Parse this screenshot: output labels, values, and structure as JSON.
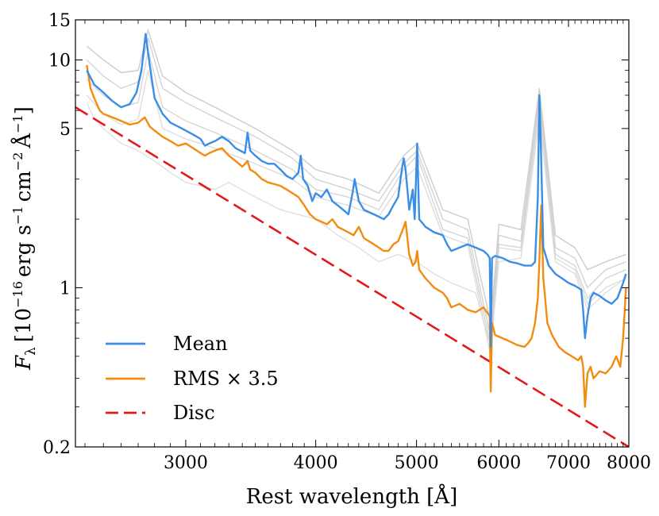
{
  "chart_data": {
    "type": "line",
    "title": "",
    "xlabel": "Rest wavelength [Å]",
    "ylabel_parts": [
      "F",
      "λ",
      "[10",
      "−16",
      "erg s",
      "−1",
      "cm",
      "−2",
      "Å",
      "−1",
      "]"
    ],
    "xscale": "log",
    "yscale": "log",
    "xlim": [
      2350,
      8000
    ],
    "ylim": [
      0.2,
      15
    ],
    "x_ticks": [
      {
        "value": 3000,
        "label": "3000"
      },
      {
        "value": 4000,
        "label": "4000"
      },
      {
        "value": 5000,
        "label": "5000"
      },
      {
        "value": 6000,
        "label": "6000"
      },
      {
        "value": 7000,
        "label": "7000"
      },
      {
        "value": 8000,
        "label": "8000"
      }
    ],
    "y_ticks": [
      {
        "value": 0.2,
        "label": "0.2"
      },
      {
        "value": 1,
        "label": "1"
      },
      {
        "value": 5,
        "label": "5"
      },
      {
        "value": 10,
        "label": "10"
      },
      {
        "value": 15,
        "label": "15"
      }
    ],
    "legend": {
      "position": "lower-left",
      "entries": [
        {
          "label": "Mean",
          "color": "#3a8ee6",
          "style": "solid"
        },
        {
          "label": "RMS × 3.5",
          "color": "#f28c0f",
          "style": "solid"
        },
        {
          "label": "Disc",
          "color": "#e31a1c",
          "style": "dashed"
        }
      ]
    },
    "series": [
      {
        "name": "Disc",
        "color": "#e31a1c",
        "style": "dashed",
        "x": [
          2350,
          8000
        ],
        "y": [
          6.2,
          0.2
        ]
      },
      {
        "name": "Mean",
        "color": "#3a8ee6",
        "style": "solid",
        "x": [
          2410,
          2450,
          2500,
          2550,
          2600,
          2650,
          2690,
          2720,
          2745,
          2770,
          2800,
          2850,
          2900,
          2950,
          3000,
          3050,
          3100,
          3130,
          3160,
          3200,
          3250,
          3300,
          3350,
          3420,
          3440,
          3460,
          3500,
          3550,
          3600,
          3650,
          3700,
          3750,
          3800,
          3850,
          3870,
          3890,
          3930,
          3970,
          4000,
          4050,
          4100,
          4150,
          4200,
          4250,
          4300,
          4340,
          4360,
          4400,
          4450,
          4500,
          4550,
          4600,
          4650,
          4700,
          4750,
          4800,
          4840,
          4861,
          4880,
          4920,
          4959,
          4980,
          5007,
          5030,
          5100,
          5200,
          5300,
          5350,
          5400,
          5500,
          5600,
          5700,
          5800,
          5850,
          5880,
          5893,
          5910,
          5950,
          6050,
          6150,
          6250,
          6350,
          6450,
          6500,
          6540,
          6563,
          6580,
          6620,
          6700,
          6800,
          6900,
          7000,
          7100,
          7150,
          7200,
          7230,
          7260,
          7300,
          7350,
          7400,
          7500,
          7600,
          7700,
          7800,
          7900,
          7950
        ],
        "y": [
          9.0,
          7.8,
          7.2,
          6.6,
          6.2,
          6.4,
          7.2,
          9.0,
          13.0,
          9.5,
          6.8,
          5.8,
          5.3,
          5.1,
          4.9,
          4.7,
          4.5,
          4.2,
          4.3,
          4.4,
          4.6,
          4.4,
          4.1,
          3.9,
          4.8,
          4.0,
          3.8,
          3.6,
          3.5,
          3.5,
          3.3,
          3.1,
          3.0,
          3.2,
          3.8,
          3.0,
          2.8,
          2.4,
          2.6,
          2.5,
          2.7,
          2.4,
          2.3,
          2.2,
          2.1,
          2.6,
          3.0,
          2.4,
          2.2,
          2.15,
          2.1,
          2.05,
          2.0,
          2.1,
          2.3,
          2.5,
          3.3,
          3.7,
          3.3,
          2.2,
          2.7,
          2.0,
          4.3,
          2.0,
          1.85,
          1.75,
          1.7,
          1.55,
          1.45,
          1.5,
          1.55,
          1.5,
          1.45,
          1.4,
          1.35,
          0.55,
          1.35,
          1.38,
          1.35,
          1.3,
          1.28,
          1.25,
          1.25,
          1.3,
          2.5,
          7.0,
          4.8,
          1.5,
          1.25,
          1.15,
          1.1,
          1.05,
          1.02,
          1.0,
          0.98,
          0.8,
          0.6,
          0.75,
          0.9,
          0.95,
          0.92,
          0.88,
          0.85,
          0.9,
          1.05,
          1.15
        ]
      },
      {
        "name": "RMS × 3.5",
        "color": "#f28c0f",
        "style": "solid",
        "x": [
          2410,
          2430,
          2450,
          2480,
          2500,
          2550,
          2600,
          2650,
          2700,
          2740,
          2770,
          2800,
          2850,
          2900,
          2950,
          3000,
          3050,
          3100,
          3130,
          3160,
          3200,
          3250,
          3300,
          3350,
          3400,
          3440,
          3460,
          3500,
          3550,
          3600,
          3650,
          3700,
          3750,
          3800,
          3850,
          3900,
          3950,
          4000,
          4050,
          4100,
          4150,
          4200,
          4250,
          4300,
          4350,
          4400,
          4450,
          4500,
          4550,
          4600,
          4650,
          4700,
          4750,
          4800,
          4850,
          4880,
          4920,
          4960,
          4990,
          5007,
          5030,
          5100,
          5200,
          5300,
          5350,
          5400,
          5500,
          5600,
          5700,
          5800,
          5880,
          5893,
          5910,
          5950,
          6050,
          6150,
          6250,
          6350,
          6400,
          6450,
          6500,
          6540,
          6563,
          6590,
          6620,
          6680,
          6750,
          6850,
          6950,
          7050,
          7150,
          7200,
          7230,
          7260,
          7300,
          7350,
          7400,
          7500,
          7600,
          7700,
          7780,
          7850,
          7900,
          7950
        ],
        "y": [
          9.5,
          7.5,
          6.8,
          6.0,
          5.8,
          5.6,
          5.4,
          5.2,
          5.3,
          5.6,
          5.1,
          4.9,
          4.6,
          4.4,
          4.2,
          4.3,
          4.1,
          3.9,
          3.8,
          3.9,
          4.0,
          4.1,
          3.8,
          3.6,
          3.4,
          3.6,
          3.3,
          3.2,
          3.0,
          2.9,
          2.85,
          2.8,
          2.7,
          2.6,
          2.5,
          2.3,
          2.1,
          2.0,
          1.95,
          1.9,
          2.0,
          1.85,
          1.8,
          1.75,
          1.7,
          1.85,
          1.65,
          1.6,
          1.55,
          1.5,
          1.45,
          1.45,
          1.55,
          1.6,
          1.8,
          1.95,
          1.4,
          1.25,
          1.3,
          1.45,
          1.2,
          1.1,
          1.0,
          0.95,
          0.9,
          0.82,
          0.85,
          0.8,
          0.78,
          0.82,
          0.75,
          0.35,
          0.7,
          0.62,
          0.6,
          0.58,
          0.56,
          0.55,
          0.57,
          0.6,
          0.7,
          0.9,
          1.3,
          2.3,
          1.1,
          0.7,
          0.62,
          0.55,
          0.52,
          0.5,
          0.48,
          0.5,
          0.45,
          0.3,
          0.42,
          0.45,
          0.4,
          0.43,
          0.42,
          0.45,
          0.5,
          0.45,
          0.6,
          1.0
        ]
      }
    ],
    "background_series": [
      {
        "color": "#c0c0c0",
        "x": [
          2410,
          2500,
          2600,
          2700,
          2760,
          2850,
          3000,
          3200,
          3500,
          3800,
          4000,
          4300,
          4600,
          4861,
          5007,
          5300,
          5600,
          5893,
          6000,
          6300,
          6563,
          6800,
          7100,
          7300,
          7600,
          7950
        ],
        "y": [
          11.5,
          10.0,
          8.8,
          9.0,
          13.5,
          8.5,
          7.2,
          6.2,
          5.0,
          4.0,
          3.3,
          3.0,
          2.6,
          3.8,
          4.3,
          2.2,
          2.0,
          0.7,
          1.9,
          1.8,
          7.5,
          1.7,
          1.5,
          1.2,
          1.3,
          1.4
        ]
      },
      {
        "color": "#c8c8c8",
        "x": [
          2410,
          2500,
          2600,
          2700,
          2760,
          2850,
          3000,
          3200,
          3500,
          3800,
          4000,
          4300,
          4600,
          4861,
          5007,
          5300,
          5600,
          5893,
          6000,
          6300,
          6563,
          6800,
          7100,
          7300,
          7600,
          7950
        ],
        "y": [
          10.0,
          8.5,
          7.5,
          8.0,
          12.5,
          7.5,
          6.5,
          5.6,
          4.6,
          3.7,
          3.0,
          2.7,
          2.4,
          3.5,
          4.0,
          2.0,
          1.8,
          0.6,
          1.7,
          1.6,
          7.0,
          1.5,
          1.35,
          1.0,
          1.2,
          1.3
        ]
      },
      {
        "color": "#cccccc",
        "x": [
          2410,
          2500,
          2600,
          2700,
          2760,
          2850,
          3000,
          3200,
          3500,
          3800,
          4000,
          4300,
          4600,
          4861,
          5007,
          5300,
          5600,
          5893,
          6000,
          6300,
          6563,
          6800,
          7100,
          7300,
          7600,
          7950
        ],
        "y": [
          8.2,
          7.0,
          6.2,
          6.5,
          11.0,
          6.2,
          5.4,
          4.8,
          4.0,
          3.3,
          2.7,
          2.5,
          2.2,
          3.3,
          3.8,
          1.8,
          1.65,
          0.55,
          1.55,
          1.5,
          6.6,
          1.4,
          1.25,
          0.9,
          1.1,
          1.2
        ]
      },
      {
        "color": "#d4d4d4",
        "x": [
          2410,
          2500,
          2600,
          2700,
          2760,
          2850,
          3000,
          3200,
          3500,
          3800,
          4000,
          4300,
          4600,
          4861,
          5007,
          5300,
          5600,
          5893,
          6000,
          6300,
          6563,
          6800,
          7100,
          7300,
          7600,
          7950
        ],
        "y": [
          7.0,
          5.8,
          5.2,
          5.5,
          9.0,
          5.0,
          4.5,
          4.1,
          3.5,
          3.0,
          2.5,
          2.3,
          2.05,
          3.0,
          3.4,
          1.7,
          1.55,
          0.5,
          1.5,
          1.45,
          6.0,
          1.35,
          1.2,
          0.85,
          1.0,
          1.1
        ]
      },
      {
        "color": "#d8d8d8",
        "x": [
          2410,
          2450,
          2500,
          2600,
          2700,
          2800,
          2900,
          3000,
          3100,
          3200,
          3300,
          3500,
          3700,
          4000,
          4200,
          4400,
          4600,
          4800,
          5000,
          5200,
          5400,
          5700,
          5893,
          6000,
          6300,
          6563,
          6800,
          7100,
          7300,
          7600,
          7950
        ],
        "y": [
          6.5,
          5.5,
          5.0,
          4.3,
          4.0,
          3.6,
          3.2,
          2.9,
          2.8,
          2.7,
          2.9,
          2.5,
          2.2,
          2.0,
          1.7,
          1.5,
          1.3,
          1.4,
          1.3,
          1.15,
          1.05,
          0.95,
          0.55,
          1.3,
          1.35,
          5.5,
          1.3,
          1.15,
          0.8,
          0.95,
          1.1
        ]
      }
    ]
  }
}
